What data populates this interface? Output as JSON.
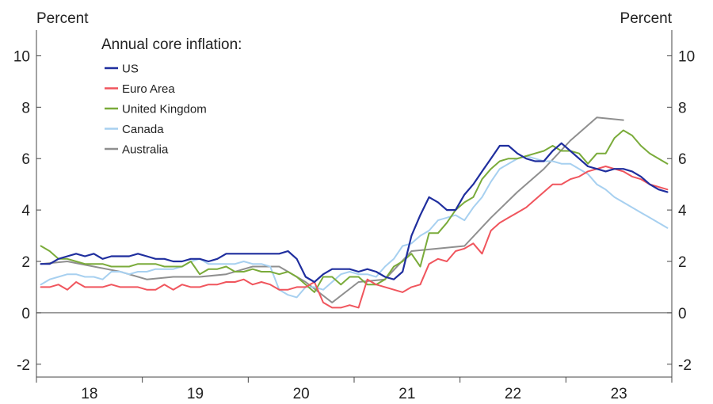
{
  "chart_data": {
    "type": "line",
    "legend_title": "Annual core inflation:",
    "ylabel_left": "Percent",
    "ylabel_right": "Percent",
    "ylim": [
      -2.5,
      11
    ],
    "yticks": [
      -2,
      0,
      2,
      4,
      6,
      8,
      10
    ],
    "ytick_labels": [
      "-2",
      "0",
      "2",
      "4",
      "6",
      "8",
      "10"
    ],
    "xlim": [
      2017.5,
      2023.5
    ],
    "x_year_bounds": [
      2017.5,
      2018.5,
      2019.5,
      2020.5,
      2021.5,
      2022.5,
      2023.5
    ],
    "x_categories": [
      "18",
      "19",
      "20",
      "21",
      "22",
      "23"
    ],
    "x_category_centers": [
      2018.0,
      2019.0,
      2020.0,
      2021.0,
      2022.0,
      2023.0
    ],
    "series": [
      {
        "name": "US",
        "color": "#1f2e9e",
        "width": 2.2,
        "x": [
          2017.542,
          2017.625,
          2017.708,
          2017.792,
          2017.875,
          2017.958,
          2018.042,
          2018.125,
          2018.208,
          2018.292,
          2018.375,
          2018.458,
          2018.542,
          2018.625,
          2018.708,
          2018.792,
          2018.875,
          2018.958,
          2019.042,
          2019.125,
          2019.208,
          2019.292,
          2019.375,
          2019.458,
          2019.542,
          2019.625,
          2019.708,
          2019.792,
          2019.875,
          2019.958,
          2020.042,
          2020.125,
          2020.208,
          2020.292,
          2020.375,
          2020.458,
          2020.542,
          2020.625,
          2020.708,
          2020.792,
          2020.875,
          2020.958,
          2021.042,
          2021.125,
          2021.208,
          2021.292,
          2021.375,
          2021.458,
          2021.542,
          2021.625,
          2021.708,
          2021.792,
          2021.875,
          2021.958,
          2022.042,
          2022.125,
          2022.208,
          2022.292,
          2022.375,
          2022.458,
          2022.542,
          2022.625,
          2022.708,
          2022.792,
          2022.875,
          2022.958,
          2023.042,
          2023.125,
          2023.208,
          2023.292,
          2023.375,
          2023.458
        ],
        "values": [
          1.9,
          1.9,
          2.1,
          2.2,
          2.3,
          2.2,
          2.3,
          2.1,
          2.2,
          2.2,
          2.2,
          2.3,
          2.2,
          2.1,
          2.1,
          2.0,
          2.0,
          2.1,
          2.1,
          2.0,
          2.1,
          2.3,
          2.3,
          2.3,
          2.3,
          2.3,
          2.3,
          2.3,
          2.4,
          2.1,
          1.4,
          1.2,
          1.5,
          1.7,
          1.7,
          1.7,
          1.6,
          1.7,
          1.6,
          1.4,
          1.3,
          1.6,
          3.0,
          3.8,
          4.5,
          4.3,
          4.0,
          4.0,
          4.6,
          5.0,
          5.5,
          6.0,
          6.5,
          6.5,
          6.2,
          6.0,
          5.9,
          5.9,
          6.3,
          6.6,
          6.3,
          6.0,
          5.7,
          5.6,
          5.5,
          5.6,
          5.6,
          5.5,
          5.3,
          5.0,
          4.8,
          4.7
        ]
      },
      {
        "name": "Euro Area",
        "color": "#f0555d",
        "width": 2.0,
        "x": [
          2017.542,
          2017.625,
          2017.708,
          2017.792,
          2017.875,
          2017.958,
          2018.042,
          2018.125,
          2018.208,
          2018.292,
          2018.375,
          2018.458,
          2018.542,
          2018.625,
          2018.708,
          2018.792,
          2018.875,
          2018.958,
          2019.042,
          2019.125,
          2019.208,
          2019.292,
          2019.375,
          2019.458,
          2019.542,
          2019.625,
          2019.708,
          2019.792,
          2019.875,
          2019.958,
          2020.042,
          2020.125,
          2020.208,
          2020.292,
          2020.375,
          2020.458,
          2020.542,
          2020.625,
          2020.708,
          2020.792,
          2020.875,
          2020.958,
          2021.042,
          2021.125,
          2021.208,
          2021.292,
          2021.375,
          2021.458,
          2021.542,
          2021.625,
          2021.708,
          2021.792,
          2021.875,
          2021.958,
          2022.042,
          2022.125,
          2022.208,
          2022.292,
          2022.375,
          2022.458,
          2022.542,
          2022.625,
          2022.708,
          2022.792,
          2022.875,
          2022.958,
          2023.042,
          2023.125,
          2023.208,
          2023.292,
          2023.375,
          2023.458
        ],
        "values": [
          1.0,
          1.0,
          1.1,
          0.9,
          1.2,
          1.0,
          1.0,
          1.0,
          1.1,
          1.0,
          1.0,
          1.0,
          0.9,
          0.9,
          1.1,
          0.9,
          1.1,
          1.0,
          1.0,
          1.1,
          1.1,
          1.2,
          1.2,
          1.3,
          1.1,
          1.2,
          1.1,
          0.9,
          0.9,
          1.0,
          1.0,
          1.2,
          0.4,
          0.2,
          0.2,
          0.3,
          0.2,
          1.3,
          1.1,
          1.0,
          0.9,
          0.8,
          1.0,
          1.1,
          1.9,
          2.1,
          2.0,
          2.4,
          2.5,
          2.7,
          2.3,
          3.2,
          3.5,
          3.7,
          3.9,
          4.1,
          4.4,
          4.7,
          5.0,
          5.0,
          5.2,
          5.3,
          5.5,
          5.6,
          5.7,
          5.6,
          5.5,
          5.3,
          5.2,
          5.0,
          4.9,
          4.8
        ]
      },
      {
        "name": "United Kingdom",
        "color": "#7aab3a",
        "width": 2.0,
        "x": [
          2017.542,
          2017.625,
          2017.708,
          2017.792,
          2017.875,
          2017.958,
          2018.042,
          2018.125,
          2018.208,
          2018.292,
          2018.375,
          2018.458,
          2018.542,
          2018.625,
          2018.708,
          2018.792,
          2018.875,
          2018.958,
          2019.042,
          2019.125,
          2019.208,
          2019.292,
          2019.375,
          2019.458,
          2019.542,
          2019.625,
          2019.708,
          2019.792,
          2019.875,
          2019.958,
          2020.042,
          2020.125,
          2020.208,
          2020.292,
          2020.375,
          2020.458,
          2020.542,
          2020.625,
          2020.708,
          2020.792,
          2020.875,
          2020.958,
          2021.042,
          2021.125,
          2021.208,
          2021.292,
          2021.375,
          2021.458,
          2021.542,
          2021.625,
          2021.708,
          2021.792,
          2021.875,
          2021.958,
          2022.042,
          2022.125,
          2022.208,
          2022.292,
          2022.375,
          2022.458,
          2022.542,
          2022.625,
          2022.708,
          2022.792,
          2022.875,
          2022.958,
          2023.042,
          2023.125,
          2023.208,
          2023.292,
          2023.375,
          2023.458
        ],
        "values": [
          2.6,
          2.4,
          2.1,
          2.1,
          2.0,
          1.9,
          1.9,
          1.9,
          1.8,
          1.8,
          1.8,
          1.9,
          1.9,
          1.9,
          1.8,
          1.8,
          1.8,
          2.0,
          1.5,
          1.7,
          1.7,
          1.8,
          1.6,
          1.6,
          1.7,
          1.6,
          1.6,
          1.5,
          1.6,
          1.4,
          1.1,
          0.8,
          1.4,
          1.4,
          1.1,
          1.4,
          1.4,
          1.1,
          1.1,
          1.3,
          1.8,
          2.0,
          2.3,
          1.8,
          3.1,
          3.1,
          3.5,
          4.0,
          4.3,
          4.5,
          5.2,
          5.6,
          5.9,
          6.0,
          6.0,
          6.1,
          6.2,
          6.3,
          6.5,
          6.3,
          6.3,
          6.2,
          5.8,
          6.2,
          6.2,
          6.8,
          7.1,
          6.9,
          6.5,
          6.2,
          6.0,
          5.8
        ]
      },
      {
        "name": "Canada",
        "color": "#a7d0f0",
        "width": 2.0,
        "x": [
          2017.542,
          2017.625,
          2017.708,
          2017.792,
          2017.875,
          2017.958,
          2018.042,
          2018.125,
          2018.208,
          2018.292,
          2018.375,
          2018.458,
          2018.542,
          2018.625,
          2018.708,
          2018.792,
          2018.875,
          2018.958,
          2019.042,
          2019.125,
          2019.208,
          2019.292,
          2019.375,
          2019.458,
          2019.542,
          2019.625,
          2019.708,
          2019.792,
          2019.875,
          2019.958,
          2020.042,
          2020.125,
          2020.208,
          2020.292,
          2020.375,
          2020.458,
          2020.542,
          2020.625,
          2020.708,
          2020.792,
          2020.875,
          2020.958,
          2021.042,
          2021.125,
          2021.208,
          2021.292,
          2021.375,
          2021.458,
          2021.542,
          2021.625,
          2021.708,
          2021.792,
          2021.875,
          2021.958,
          2022.042,
          2022.125,
          2022.208,
          2022.292,
          2022.375,
          2022.458,
          2022.542,
          2022.625,
          2022.708,
          2022.792,
          2022.875,
          2022.958,
          2023.042,
          2023.125,
          2023.208,
          2023.292,
          2023.375,
          2023.458
        ],
        "values": [
          1.1,
          1.3,
          1.4,
          1.5,
          1.5,
          1.4,
          1.4,
          1.3,
          1.6,
          1.6,
          1.5,
          1.6,
          1.6,
          1.7,
          1.7,
          1.7,
          1.8,
          2.0,
          2.1,
          1.9,
          1.9,
          1.9,
          1.9,
          2.0,
          1.9,
          1.9,
          1.8,
          0.9,
          0.7,
          0.6,
          1.0,
          1.0,
          0.9,
          1.2,
          1.5,
          1.6,
          1.5,
          1.5,
          1.4,
          1.8,
          2.1,
          2.6,
          2.7,
          3.0,
          3.2,
          3.6,
          3.7,
          3.8,
          3.6,
          4.1,
          4.5,
          5.1,
          5.6,
          5.8,
          6.0,
          6.1,
          6.0,
          5.9,
          5.9,
          5.8,
          5.8,
          5.6,
          5.4,
          5.0,
          4.8,
          4.5,
          4.3,
          4.1,
          3.9,
          3.7,
          3.5,
          3.3
        ]
      },
      {
        "name": "Australia",
        "color": "#8f8f8f",
        "width": 2.0,
        "x": [
          2017.542,
          2017.792,
          2018.042,
          2018.292,
          2018.542,
          2018.792,
          2019.042,
          2019.292,
          2019.542,
          2019.792,
          2020.042,
          2020.292,
          2020.542,
          2020.792,
          2021.042,
          2021.292,
          2021.542,
          2021.792,
          2022.042,
          2022.292,
          2022.542,
          2022.792,
          2023.042
        ],
        "values": [
          1.9,
          2.0,
          1.8,
          1.6,
          1.3,
          1.4,
          1.4,
          1.5,
          1.8,
          1.8,
          1.2,
          0.4,
          1.2,
          1.3,
          2.4,
          2.5,
          2.6,
          3.7,
          4.7,
          5.6,
          6.7,
          7.6,
          7.5
        ]
      }
    ]
  }
}
